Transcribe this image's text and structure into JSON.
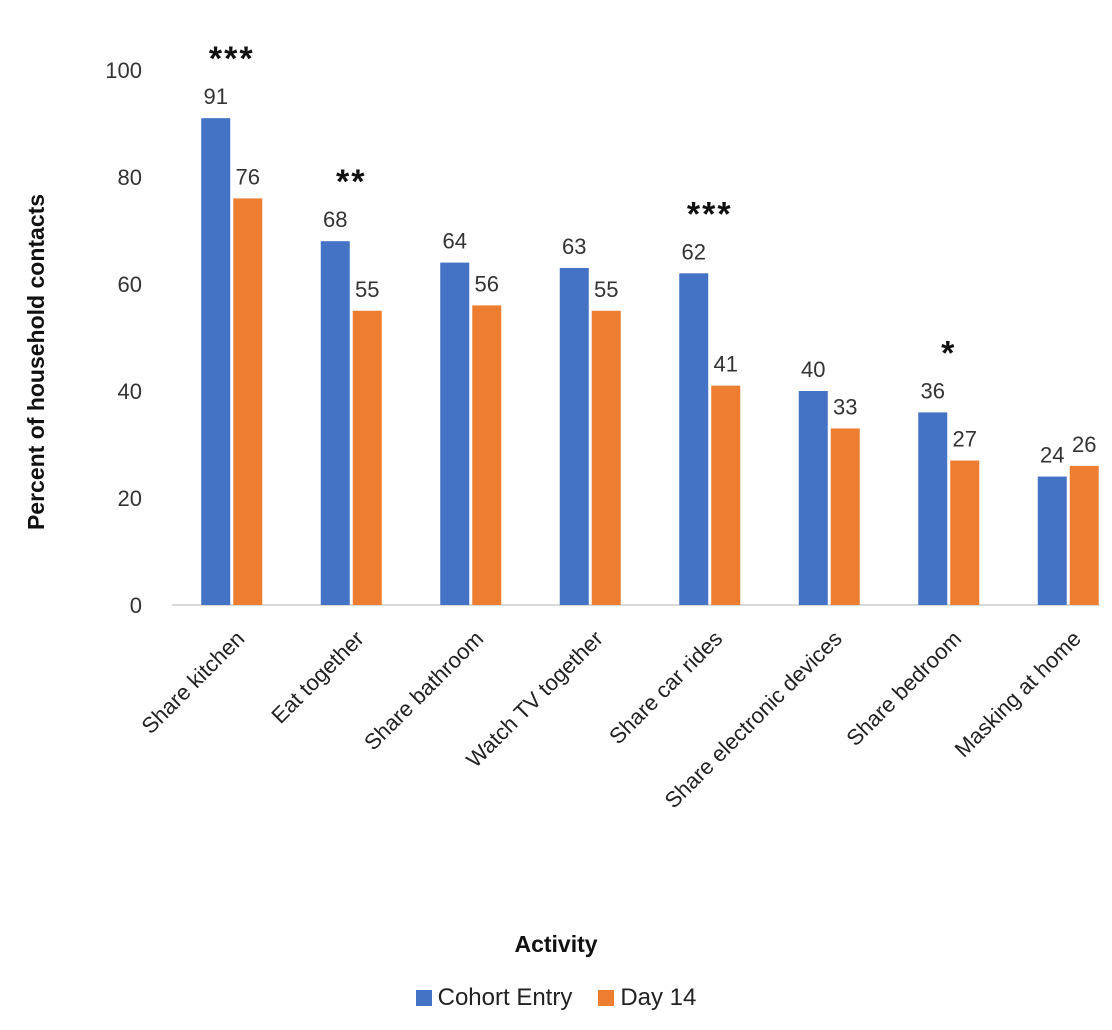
{
  "chart_data": {
    "type": "bar",
    "xlabel": "Activity",
    "ylabel": "Percent of household contacts",
    "ylim": [
      0,
      100
    ],
    "yticks": [
      0,
      20,
      40,
      60,
      80,
      100
    ],
    "categories": [
      "Share kitchen",
      "Eat together",
      "Share bathroom",
      "Watch TV together",
      "Share car rides",
      "Share electronic devices",
      "Share bedroom",
      "Masking at home"
    ],
    "series": [
      {
        "name": "Cohort Entry",
        "color": "#4472C4",
        "values": [
          91,
          68,
          64,
          63,
          62,
          40,
          36,
          24
        ]
      },
      {
        "name": "Day 14",
        "color": "#ED7D31",
        "values": [
          76,
          55,
          56,
          55,
          41,
          33,
          27,
          26
        ]
      }
    ],
    "significance": [
      "***",
      "**",
      "",
      "",
      "***",
      "",
      "*",
      ""
    ],
    "grid": false,
    "legend_position": "bottom"
  }
}
